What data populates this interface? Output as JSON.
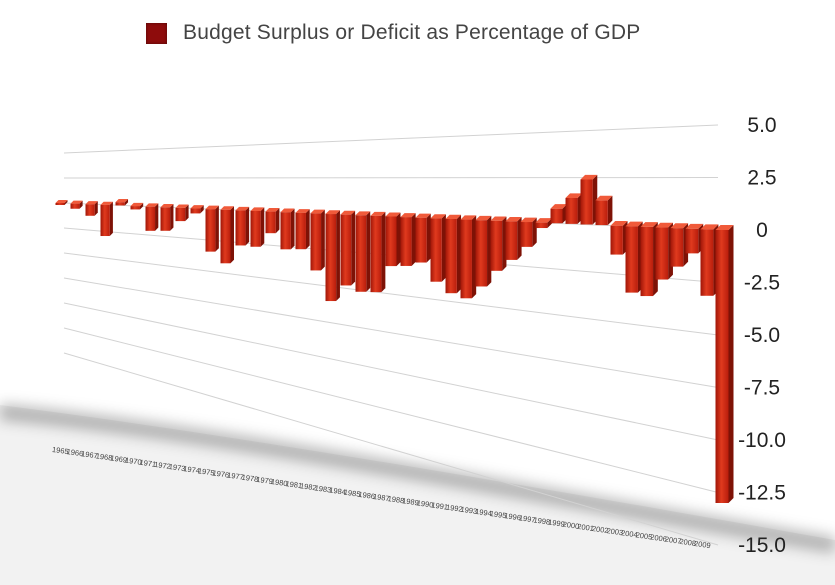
{
  "chart_data": {
    "type": "bar",
    "legend": {
      "label": "Budget Surplus or Deficit as Percentage of GDP",
      "color": "#8e0c0c",
      "position": "top"
    },
    "y_ticks": [
      "5.0",
      "2.5",
      "0",
      "-2.5",
      "-5.0",
      "-7.5",
      "-10.0",
      "-12.5",
      "-15.0"
    ],
    "ylim": [
      -15,
      5
    ],
    "grid": true,
    "bar_color": "#d42a14",
    "categories": [
      "1965",
      "1966",
      "1967",
      "1968",
      "1969",
      "1970",
      "1971",
      "1972",
      "1973",
      "1974",
      "1975",
      "1976",
      "1977",
      "1978",
      "1979",
      "1980",
      "1981",
      "1982",
      "1983",
      "1984",
      "1985",
      "1986",
      "1987",
      "1988",
      "1989",
      "1990",
      "1991",
      "1992",
      "1993",
      "1994",
      "1995",
      "1996",
      "1997",
      "1998",
      "1999",
      "2000",
      "2001",
      "2002",
      "2003",
      "2004",
      "2005",
      "2006",
      "2007",
      "2008",
      "2009"
    ],
    "values": [
      -0.2,
      -0.5,
      -1.1,
      -2.9,
      0.3,
      -0.3,
      -2.1,
      -2.0,
      -1.1,
      -0.4,
      -3.4,
      -4.2,
      -2.7,
      -2.7,
      -1.6,
      -2.7,
      -2.6,
      -4.0,
      -6.0,
      -4.8,
      -5.1,
      -5.0,
      -3.2,
      -3.1,
      -2.8,
      -3.9,
      -4.5,
      -4.7,
      -3.9,
      -2.9,
      -2.2,
      -1.4,
      -0.3,
      0.8,
      1.4,
      2.4,
      1.3,
      -1.5,
      -3.4,
      -3.5,
      -2.6,
      -1.9,
      -1.2,
      -3.2,
      -13.0
    ]
  }
}
